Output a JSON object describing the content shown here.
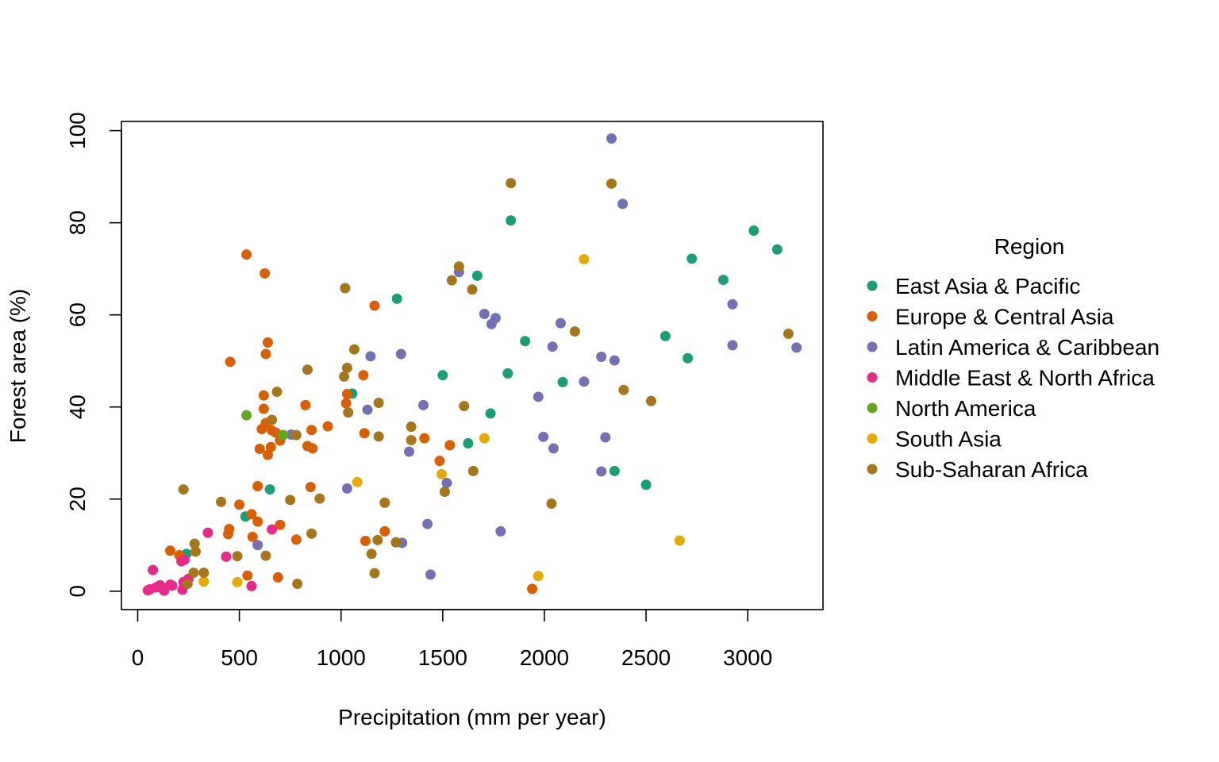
{
  "chart_data": {
    "type": "scatter",
    "xlabel": "Precipitation (mm per year)",
    "ylabel": "Forest area (%)",
    "xlim": [
      -80,
      3370
    ],
    "ylim": [
      -4,
      102
    ],
    "x_ticks": [
      0,
      500,
      1000,
      1500,
      2000,
      2500,
      3000
    ],
    "y_ticks": [
      0,
      20,
      40,
      60,
      80,
      100
    ],
    "x_tick_labels": [
      "0",
      "500",
      "1000",
      "1500",
      "2000",
      "2500",
      "3000"
    ],
    "y_tick_labels": [
      "0",
      "20",
      "40",
      "60",
      "80",
      "100"
    ],
    "grid": false,
    "legend": {
      "title": "Region",
      "position": "right"
    },
    "series": [
      {
        "name": "East Asia & Pacific",
        "color": "#1B9E77",
        "points": [
          [
            1835,
            80.5
          ],
          [
            1275,
            63.5
          ],
          [
            1670,
            68.5
          ],
          [
            1905,
            54.3
          ],
          [
            1820,
            47.3
          ],
          [
            1500,
            46.9
          ],
          [
            1055,
            42.9
          ],
          [
            2090,
            45.4
          ],
          [
            1735,
            38.6
          ],
          [
            1625,
            32.1
          ],
          [
            2345,
            26.1
          ],
          [
            2500,
            23.1
          ],
          [
            2595,
            55.4
          ],
          [
            2705,
            50.6
          ],
          [
            2725,
            72.2
          ],
          [
            2880,
            67.6
          ],
          [
            3030,
            78.3
          ],
          [
            3145,
            74.2
          ],
          [
            650,
            22.1
          ],
          [
            530,
            16.2
          ],
          [
            240,
            8.1
          ]
        ]
      },
      {
        "name": "Europe & Central Asia",
        "color": "#D95F02",
        "points": [
          [
            535,
            73.1
          ],
          [
            625,
            69.0
          ],
          [
            1165,
            62.0
          ],
          [
            640,
            54.0
          ],
          [
            630,
            51.5
          ],
          [
            455,
            49.8
          ],
          [
            620,
            42.5
          ],
          [
            1110,
            46.9
          ],
          [
            825,
            40.4
          ],
          [
            1025,
            40.8
          ],
          [
            1030,
            42.8
          ],
          [
            620,
            39.6
          ],
          [
            630,
            36.5
          ],
          [
            660,
            34.9
          ],
          [
            610,
            35.2
          ],
          [
            680,
            34.4
          ],
          [
            700,
            32.7
          ],
          [
            855,
            35.0
          ],
          [
            935,
            35.8
          ],
          [
            1115,
            34.3
          ],
          [
            1410,
            33.2
          ],
          [
            1535,
            31.7
          ],
          [
            860,
            31.0
          ],
          [
            835,
            31.5
          ],
          [
            600,
            30.9
          ],
          [
            640,
            29.6
          ],
          [
            655,
            31.3
          ],
          [
            1485,
            28.3
          ],
          [
            590,
            22.8
          ],
          [
            850,
            22.6
          ],
          [
            500,
            18.8
          ],
          [
            560,
            16.7
          ],
          [
            590,
            15.1
          ],
          [
            450,
            13.5
          ],
          [
            445,
            12.4
          ],
          [
            700,
            14.4
          ],
          [
            565,
            11.8
          ],
          [
            780,
            11.2
          ],
          [
            1215,
            13.0
          ],
          [
            1120,
            10.9
          ],
          [
            540,
            3.4
          ],
          [
            690,
            3.0
          ],
          [
            205,
            7.8
          ],
          [
            160,
            8.8
          ],
          [
            1940,
            0.5
          ]
        ]
      },
      {
        "name": "Latin America & Caribbean",
        "color": "#7570B3",
        "points": [
          [
            2330,
            98.3
          ],
          [
            2385,
            84.1
          ],
          [
            1580,
            69.3
          ],
          [
            1705,
            60.2
          ],
          [
            1760,
            59.3
          ],
          [
            1740,
            58.0
          ],
          [
            2080,
            58.2
          ],
          [
            2040,
            53.1
          ],
          [
            1145,
            51.0
          ],
          [
            1295,
            51.5
          ],
          [
            2280,
            50.9
          ],
          [
            2345,
            50.1
          ],
          [
            2925,
            62.3
          ],
          [
            2925,
            53.4
          ],
          [
            3240,
            52.9
          ],
          [
            1970,
            42.2
          ],
          [
            2195,
            45.5
          ],
          [
            1405,
            40.4
          ],
          [
            1130,
            39.4
          ],
          [
            755,
            34.0
          ],
          [
            1995,
            33.5
          ],
          [
            2300,
            33.4
          ],
          [
            1335,
            30.3
          ],
          [
            2045,
            31.0
          ],
          [
            2280,
            26.0
          ],
          [
            1520,
            23.5
          ],
          [
            1030,
            22.3
          ],
          [
            1425,
            14.6
          ],
          [
            1785,
            13.0
          ],
          [
            590,
            10.0
          ],
          [
            1300,
            10.5
          ],
          [
            1440,
            3.6
          ]
        ]
      },
      {
        "name": "Middle East & North Africa",
        "color": "#E7298A",
        "points": [
          [
            345,
            12.7
          ],
          [
            660,
            13.4
          ],
          [
            435,
            7.5
          ],
          [
            75,
            4.6
          ],
          [
            230,
            6.8
          ],
          [
            215,
            6.5
          ],
          [
            250,
            2.7
          ],
          [
            225,
            2.0
          ],
          [
            160,
            1.4
          ],
          [
            120,
            0.7
          ],
          [
            170,
            1.2
          ],
          [
            90,
            0.8
          ],
          [
            60,
            0.4
          ],
          [
            130,
            0.1
          ],
          [
            50,
            0.2
          ],
          [
            220,
            0.3
          ],
          [
            560,
            1.1
          ],
          [
            240,
            1.8
          ],
          [
            110,
            1.3
          ]
        ]
      },
      {
        "name": "North America",
        "color": "#66A61E",
        "points": [
          [
            535,
            38.2
          ],
          [
            715,
            33.9
          ]
        ]
      },
      {
        "name": "South Asia",
        "color": "#E6AB02",
        "points": [
          [
            2195,
            72.1
          ],
          [
            1705,
            33.2
          ],
          [
            1080,
            23.7
          ],
          [
            1495,
            25.4
          ],
          [
            2665,
            11.0
          ],
          [
            1970,
            3.3
          ],
          [
            325,
            2.1
          ],
          [
            490,
            2.0
          ]
        ]
      },
      {
        "name": "Sub-Saharan Africa",
        "color": "#A6761D",
        "points": [
          [
            1835,
            88.6
          ],
          [
            2330,
            88.5
          ],
          [
            1580,
            70.5
          ],
          [
            1545,
            67.5
          ],
          [
            1645,
            65.5
          ],
          [
            1020,
            65.8
          ],
          [
            2150,
            56.4
          ],
          [
            3200,
            55.9
          ],
          [
            1065,
            52.5
          ],
          [
            1030,
            48.5
          ],
          [
            835,
            48.1
          ],
          [
            1015,
            46.6
          ],
          [
            685,
            43.3
          ],
          [
            2390,
            43.7
          ],
          [
            1035,
            38.8
          ],
          [
            1185,
            40.9
          ],
          [
            1605,
            40.2
          ],
          [
            2525,
            41.3
          ],
          [
            660,
            37.2
          ],
          [
            1345,
            35.7
          ],
          [
            780,
            33.9
          ],
          [
            1185,
            33.6
          ],
          [
            1345,
            32.8
          ],
          [
            1650,
            26.1
          ],
          [
            225,
            22.1
          ],
          [
            1510,
            21.6
          ],
          [
            410,
            19.4
          ],
          [
            750,
            19.8
          ],
          [
            895,
            20.1
          ],
          [
            1215,
            19.2
          ],
          [
            2035,
            19.0
          ],
          [
            855,
            12.5
          ],
          [
            1180,
            11.1
          ],
          [
            1270,
            10.6
          ],
          [
            280,
            10.3
          ],
          [
            285,
            8.6
          ],
          [
            630,
            7.7
          ],
          [
            1150,
            8.1
          ],
          [
            490,
            7.6
          ],
          [
            275,
            4.0
          ],
          [
            325,
            4.0
          ],
          [
            1165,
            3.9
          ],
          [
            245,
            1.6
          ],
          [
            785,
            1.6
          ]
        ]
      }
    ]
  }
}
